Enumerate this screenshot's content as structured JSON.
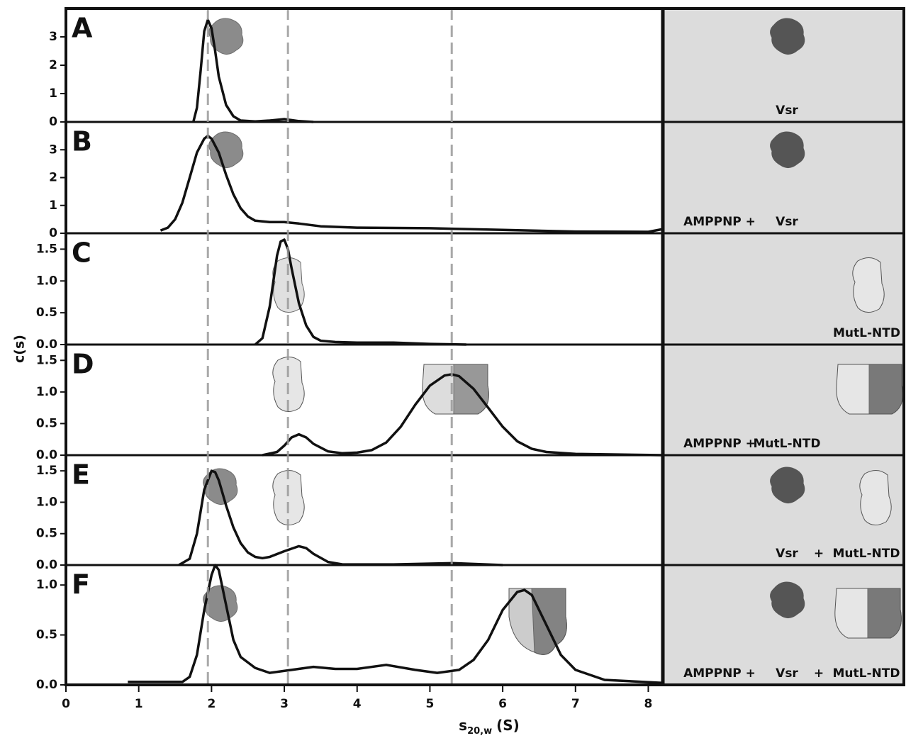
{
  "x_axis": {
    "label_symbol": "s",
    "label_subscript": "20,w",
    "label_unit": "(S)",
    "xlim": [
      0,
      8.2
    ],
    "xticks": [
      0,
      1,
      2,
      3,
      4,
      5,
      6,
      7,
      8
    ]
  },
  "y_label": "c(s)",
  "reference_lines": [
    1.95,
    3.05,
    5.3
  ],
  "chart_data": [
    {
      "type": "line",
      "title": "A",
      "ylim": [
        0,
        4
      ],
      "yticks": [
        0,
        1,
        2,
        3
      ],
      "side_labels": [
        "Vsr"
      ],
      "series": [
        {
          "color": "#111111",
          "x": [
            1.75,
            1.8,
            1.85,
            1.9,
            1.95,
            2.0,
            2.05,
            2.1,
            2.2,
            2.3,
            2.4,
            2.6,
            2.8,
            3.0,
            3.2,
            3.4
          ],
          "values": [
            0,
            0.5,
            1.8,
            3.2,
            3.6,
            3.3,
            2.5,
            1.6,
            0.6,
            0.2,
            0.05,
            0.02,
            0.05,
            0.1,
            0.03,
            0
          ]
        }
      ]
    },
    {
      "type": "line",
      "title": "B",
      "ylim": [
        0,
        4
      ],
      "yticks": [
        0,
        1,
        2,
        3
      ],
      "side_labels": [
        "AMPPNP +",
        "Vsr"
      ],
      "series": [
        {
          "color": "#111111",
          "x": [
            1.3,
            1.4,
            1.5,
            1.6,
            1.7,
            1.8,
            1.9,
            1.95,
            2.0,
            2.1,
            2.2,
            2.3,
            2.4,
            2.5,
            2.6,
            2.8,
            3.0,
            3.2,
            3.5,
            4.0,
            5.0,
            6.0,
            7.0,
            8.0,
            8.2
          ],
          "values": [
            0.1,
            0.2,
            0.5,
            1.1,
            2.0,
            2.9,
            3.4,
            3.5,
            3.4,
            2.9,
            2.1,
            1.4,
            0.9,
            0.6,
            0.45,
            0.4,
            0.4,
            0.35,
            0.25,
            0.2,
            0.18,
            0.12,
            0.06,
            0.05,
            0.15
          ]
        }
      ]
    },
    {
      "type": "line",
      "title": "C",
      "ylim": [
        0,
        1.75
      ],
      "yticks": [
        {
          "value": 0,
          "label": "0.0"
        },
        {
          "value": 0.5,
          "label": "0.5"
        },
        {
          "value": 1,
          "label": "1.0"
        },
        {
          "value": 1.5,
          "label": "1.5"
        }
      ],
      "side_labels": [
        "MutL-NTD"
      ],
      "series": [
        {
          "color": "#111111",
          "x": [
            2.6,
            2.7,
            2.8,
            2.9,
            2.95,
            3.0,
            3.05,
            3.1,
            3.2,
            3.3,
            3.4,
            3.5,
            3.7,
            4.0,
            4.5,
            5.0,
            5.5
          ],
          "values": [
            0,
            0.1,
            0.6,
            1.4,
            1.62,
            1.65,
            1.5,
            1.2,
            0.65,
            0.3,
            0.12,
            0.06,
            0.04,
            0.03,
            0.03,
            0.01,
            0
          ]
        }
      ]
    },
    {
      "type": "line",
      "title": "D",
      "ylim": [
        0,
        1.75
      ],
      "yticks": [
        {
          "value": 0,
          "label": "0.0"
        },
        {
          "value": 0.5,
          "label": "0.5"
        },
        {
          "value": 1,
          "label": "1.0"
        },
        {
          "value": 1.5,
          "label": "1.5"
        }
      ],
      "side_labels": [
        "AMPPNP +",
        "MutL-NTD"
      ],
      "series": [
        {
          "color": "#111111",
          "x": [
            2.7,
            2.9,
            3.0,
            3.1,
            3.2,
            3.3,
            3.4,
            3.6,
            3.8,
            4.0,
            4.2,
            4.4,
            4.6,
            4.8,
            5.0,
            5.2,
            5.3,
            5.4,
            5.6,
            5.8,
            6.0,
            6.2,
            6.4,
            6.6,
            7.0,
            8.2
          ],
          "values": [
            0,
            0.05,
            0.15,
            0.28,
            0.33,
            0.28,
            0.18,
            0.06,
            0.03,
            0.04,
            0.08,
            0.2,
            0.45,
            0.8,
            1.1,
            1.26,
            1.28,
            1.25,
            1.05,
            0.75,
            0.45,
            0.22,
            0.1,
            0.05,
            0.02,
            0
          ]
        }
      ]
    },
    {
      "type": "line",
      "title": "E",
      "ylim": [
        0,
        1.75
      ],
      "yticks": [
        {
          "value": 0,
          "label": "0.0"
        },
        {
          "value": 0.5,
          "label": "0.5"
        },
        {
          "value": 1,
          "label": "1.0"
        },
        {
          "value": 1.5,
          "label": "1.5"
        }
      ],
      "side_labels": [
        "Vsr",
        "+",
        "MutL-NTD"
      ],
      "series": [
        {
          "color": "#111111",
          "x": [
            1.55,
            1.7,
            1.8,
            1.9,
            2.0,
            2.05,
            2.1,
            2.2,
            2.3,
            2.4,
            2.5,
            2.6,
            2.7,
            2.8,
            3.0,
            3.2,
            3.3,
            3.4,
            3.6,
            3.8,
            4.5,
            5.3,
            6.0
          ],
          "values": [
            0,
            0.1,
            0.5,
            1.2,
            1.5,
            1.48,
            1.35,
            0.95,
            0.6,
            0.35,
            0.2,
            0.13,
            0.11,
            0.13,
            0.22,
            0.3,
            0.27,
            0.18,
            0.05,
            0.01,
            0.01,
            0.03,
            0
          ]
        }
      ]
    },
    {
      "type": "line",
      "title": "F",
      "ylim": [
        0,
        1.2
      ],
      "yticks": [
        {
          "value": 0,
          "label": "0.0"
        },
        {
          "value": 0.5,
          "label": "0.5"
        },
        {
          "value": 1,
          "label": "1.0"
        }
      ],
      "side_labels": [
        "AMPPNP +",
        "Vsr",
        "+",
        "MutL-NTD"
      ],
      "series": [
        {
          "color": "#111111",
          "x": [
            0.85,
            1.6,
            1.7,
            1.8,
            1.9,
            2.0,
            2.05,
            2.1,
            2.2,
            2.3,
            2.4,
            2.6,
            2.8,
            3.1,
            3.4,
            3.7,
            4.0,
            4.4,
            4.8,
            5.1,
            5.4,
            5.6,
            5.8,
            6.0,
            6.2,
            6.3,
            6.4,
            6.6,
            6.8,
            7.0,
            7.4,
            8.2
          ],
          "values": [
            0.03,
            0.03,
            0.08,
            0.3,
            0.75,
            1.1,
            1.2,
            1.15,
            0.8,
            0.45,
            0.28,
            0.17,
            0.12,
            0.15,
            0.18,
            0.16,
            0.16,
            0.2,
            0.15,
            0.12,
            0.15,
            0.25,
            0.45,
            0.75,
            0.93,
            0.95,
            0.9,
            0.6,
            0.3,
            0.15,
            0.05,
            0.02
          ]
        }
      ]
    }
  ]
}
